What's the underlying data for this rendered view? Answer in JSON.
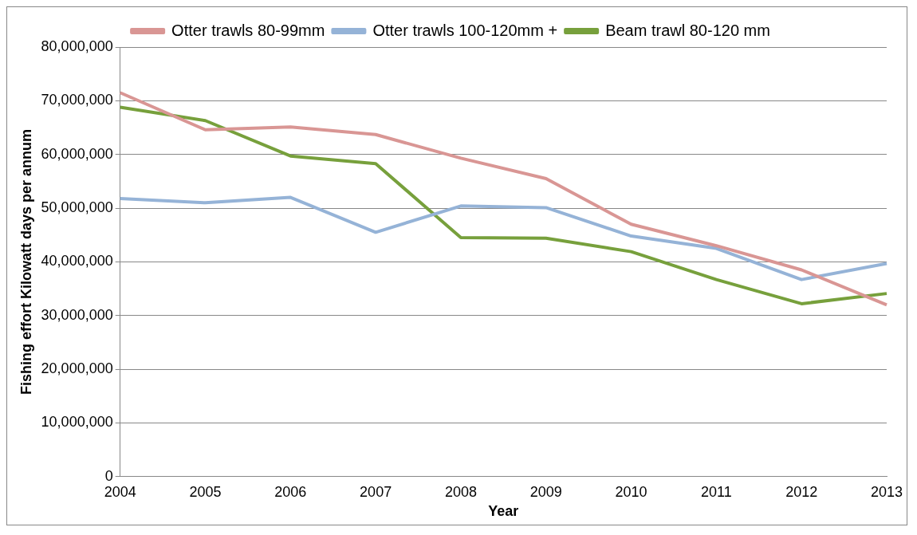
{
  "chart_data": {
    "type": "line",
    "xlabel": "Year",
    "ylabel": "Fishing effort Kilowatt days per annum",
    "categories": [
      "2004",
      "2005",
      "2006",
      "2007",
      "2008",
      "2009",
      "2010",
      "2011",
      "2012",
      "2013"
    ],
    "series": [
      {
        "name": "Otter trawls 80-99mm",
        "color": "#d99694",
        "values": [
          71500000,
          64600000,
          65100000,
          63700000,
          59300000,
          55500000,
          47000000,
          43000000,
          38500000,
          32000000
        ]
      },
      {
        "name": "Otter trawls 100-120mm +",
        "color": "#95b3d7",
        "values": [
          51800000,
          51000000,
          52000000,
          45500000,
          50400000,
          50100000,
          44800000,
          42500000,
          36700000,
          39700000
        ]
      },
      {
        "name": "Beam trawl 80-120 mm",
        "color": "#77a03c",
        "values": [
          68800000,
          66300000,
          59700000,
          58300000,
          44500000,
          44400000,
          41900000,
          36700000,
          32200000,
          34100000
        ]
      }
    ],
    "ylim": [
      0,
      80000000
    ],
    "yticks": [
      {
        "value": 0,
        "label": "0"
      },
      {
        "value": 10000000,
        "label": "10,000,000"
      },
      {
        "value": 20000000,
        "label": "20,000,000"
      },
      {
        "value": 30000000,
        "label": "30,000,000"
      },
      {
        "value": 40000000,
        "label": "40,000,000"
      },
      {
        "value": 50000000,
        "label": "50,000,000"
      },
      {
        "value": 60000000,
        "label": "60,000,000"
      },
      {
        "value": 70000000,
        "label": "70,000,000"
      },
      {
        "value": 80000000,
        "label": "80,000,000"
      }
    ],
    "grid": "y",
    "legend": "top",
    "marker": "none",
    "line_style": "solid"
  }
}
